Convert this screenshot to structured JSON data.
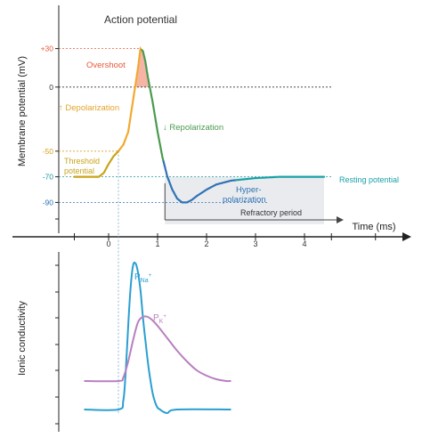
{
  "chart_data": [
    {
      "type": "line",
      "title": "Action potential",
      "ylabel": "Membrane potential (mV)",
      "xlabel": "Time (ms)",
      "xlim": [
        -1.05,
        5.8
      ],
      "ylim": [
        -110,
        43
      ],
      "grid": false,
      "y_ticks": [
        {
          "value": 30,
          "label": "+30",
          "color": "#e8583a"
        },
        {
          "value": 0,
          "label": "0",
          "color": "#333333"
        },
        {
          "value": -50,
          "label": "-50",
          "color": "#d4a11c"
        },
        {
          "value": -70,
          "label": "-70",
          "color": "#1a9a9c"
        },
        {
          "value": -90,
          "label": "-90",
          "color": "#2f73b5"
        }
      ],
      "x_ticks": [
        {
          "value": 0,
          "label": "0"
        },
        {
          "value": 1,
          "label": "1"
        },
        {
          "value": 2,
          "label": "2"
        },
        {
          "value": 3,
          "label": "3"
        },
        {
          "value": 4,
          "label": "4"
        }
      ],
      "series": [
        {
          "x": [
            -0.7,
            -0.2,
            -0.1,
            0,
            0.1,
            0.2,
            0.3,
            0.4,
            0.5,
            0.6,
            0.65,
            0.7,
            0.75,
            0.8,
            0.9,
            1.0,
            1.1,
            1.2,
            1.3,
            1.4,
            1.5,
            1.6,
            1.7,
            1.8,
            2.0,
            2.2,
            2.5,
            3.0,
            3.5,
            4.0,
            4.4
          ],
          "y": [
            -70,
            -70,
            -67,
            -60,
            -54,
            -50,
            -45,
            -35,
            -10,
            15,
            30,
            28,
            20,
            8,
            -12,
            -35,
            -55,
            -70,
            -80,
            -87,
            -90,
            -90,
            -88,
            -85,
            -80,
            -76,
            -73,
            -71,
            -70,
            -70,
            -70
          ]
        }
      ],
      "annotations": [
        {
          "text": "Overshoot",
          "color": "#e8583a"
        },
        {
          "text": "↑ Depolarization",
          "color": "#e4a42b"
        },
        {
          "text": "↓ Repolarization",
          "color": "#4a9a4e"
        },
        {
          "text": "Threshold",
          "color": "#c9a41a"
        },
        {
          "text": "potential",
          "color": "#c9a41a"
        },
        {
          "text": "Resting potential",
          "color": "#1aa1a6"
        },
        {
          "text": "Hyper-",
          "color": "#2f73b5"
        },
        {
          "text": "polarization",
          "color": "#2f73b5"
        },
        {
          "text": "Refractory period",
          "color": "#333333"
        }
      ]
    },
    {
      "type": "line",
      "ylabel": "Ionic conductivity",
      "xlim": [
        -1.05,
        5.8
      ],
      "ylim": [
        0,
        1
      ],
      "grid": false,
      "series": [
        {
          "name": "P_Na+",
          "label_main": "P",
          "label_sub": "Na",
          "label_sup": "+",
          "color": "#2a9fd0",
          "x": [
            -0.5,
            0.2,
            0.3,
            0.35,
            0.4,
            0.45,
            0.5,
            0.55,
            0.6,
            0.65,
            0.7,
            0.75,
            0.8,
            0.85,
            0.9,
            0.95,
            1.0,
            1.05,
            1.1,
            1.2,
            1.4,
            2.5
          ],
          "y": [
            0.03,
            0.03,
            0.08,
            0.25,
            0.5,
            0.72,
            0.84,
            0.85,
            0.8,
            0.7,
            0.55,
            0.42,
            0.3,
            0.2,
            0.12,
            0.07,
            0.04,
            0.03,
            0.02,
            0.01,
            0.03,
            0.03
          ]
        },
        {
          "name": "P_K+",
          "label_main": "P",
          "label_sub": "K",
          "label_sup": "+",
          "color": "#b87fc0",
          "x": [
            -0.5,
            0.2,
            0.3,
            0.4,
            0.5,
            0.6,
            0.7,
            0.8,
            0.9,
            1.0,
            1.2,
            1.4,
            1.6,
            1.8,
            2.0,
            2.2,
            2.4,
            2.5
          ],
          "y": [
            0.19,
            0.19,
            0.21,
            0.3,
            0.42,
            0.52,
            0.55,
            0.55,
            0.53,
            0.5,
            0.43,
            0.36,
            0.3,
            0.25,
            0.22,
            0.2,
            0.19,
            0.19
          ]
        }
      ]
    }
  ]
}
